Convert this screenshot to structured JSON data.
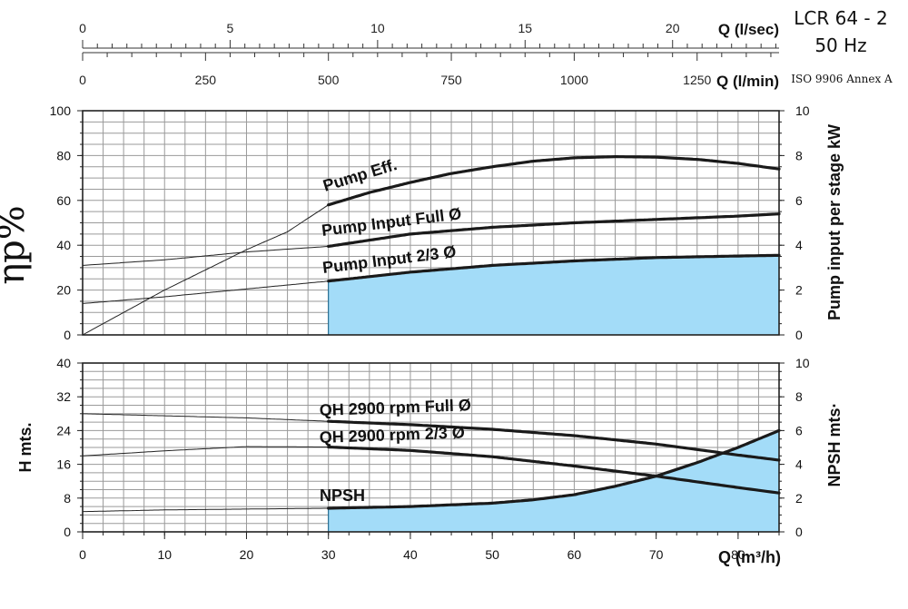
{
  "header": {
    "model": "LCR 64 - 2",
    "frequency": "50 Hz",
    "standard": "ISO 9906 Annex A"
  },
  "chart_data": [
    {
      "type": "line",
      "id": "flow-axes",
      "axes": [
        {
          "label": "Q (l/sec)",
          "ticks": [
            0,
            5,
            10,
            15,
            20
          ],
          "range": [
            0,
            23.61
          ],
          "minor_step": 0.5
        },
        {
          "label": "Q (l/min)",
          "ticks": [
            0,
            250,
            500,
            750,
            1000,
            1250
          ],
          "range": [
            0,
            1416.7
          ],
          "minor_step": 50
        }
      ]
    },
    {
      "type": "line",
      "id": "efficiency-power",
      "xlim": [
        0,
        85
      ],
      "y_left": {
        "label": "ηp%",
        "ticks": [
          0,
          20,
          40,
          60,
          80,
          100
        ],
        "lim": [
          0,
          100
        ]
      },
      "y_right": {
        "label": "Pump input per stage kW",
        "ticks": [
          0,
          2,
          4,
          6,
          8,
          10
        ],
        "lim": [
          0,
          10
        ]
      },
      "grid": true,
      "shaded_range": [
        30,
        85
      ],
      "series": [
        {
          "name": "Pump Eff.",
          "axis": "left",
          "x": [
            0,
            5,
            10,
            15,
            20,
            25,
            30,
            35,
            40,
            45,
            50,
            55,
            60,
            65,
            70,
            75,
            80,
            85
          ],
          "y": [
            0,
            10,
            20,
            29,
            38,
            46,
            58,
            63.5,
            68,
            72,
            75,
            77.5,
            79,
            79.5,
            79.3,
            78.3,
            76.5,
            74
          ]
        },
        {
          "name": "Pump Input Full Ø",
          "axis": "right",
          "x": [
            0,
            10,
            20,
            30,
            40,
            50,
            60,
            70,
            80,
            85
          ],
          "y": [
            3.1,
            3.35,
            3.7,
            3.95,
            4.5,
            4.8,
            5.0,
            5.15,
            5.3,
            5.4
          ]
        },
        {
          "name": "Pump Input 2/3 Ø",
          "axis": "right",
          "fill": true,
          "x": [
            0,
            10,
            20,
            30,
            40,
            50,
            60,
            70,
            80,
            85
          ],
          "y": [
            1.4,
            1.7,
            2.05,
            2.4,
            2.8,
            3.1,
            3.3,
            3.45,
            3.52,
            3.55
          ]
        }
      ]
    },
    {
      "type": "line",
      "id": "head-npsh",
      "xlabel": "Q (m³/h)",
      "x_ticks": [
        0,
        10,
        20,
        30,
        40,
        50,
        60,
        70,
        80
      ],
      "xlim": [
        0,
        85
      ],
      "y_left": {
        "label": "H mts.",
        "ticks": [
          0,
          8,
          16,
          24,
          32,
          40
        ],
        "lim": [
          0,
          40
        ]
      },
      "y_right": {
        "label": "NPSH mts·",
        "ticks": [
          0,
          2,
          4,
          6,
          8,
          10
        ],
        "lim": [
          0,
          10
        ]
      },
      "grid": true,
      "shaded_range": [
        30,
        85
      ],
      "series": [
        {
          "name": "QH 2900 rpm Full Ø",
          "axis": "left",
          "x": [
            0,
            10,
            20,
            30,
            40,
            50,
            60,
            70,
            80,
            85
          ],
          "y": [
            28,
            27.5,
            27,
            26.2,
            25.4,
            24.3,
            22.8,
            20.8,
            18.2,
            17
          ]
        },
        {
          "name": "QH 2900 rpm 2/3 Ø",
          "axis": "left",
          "x": [
            0,
            10,
            20,
            30,
            40,
            50,
            60,
            70,
            80,
            85
          ],
          "y": [
            18,
            19.2,
            20.2,
            20.1,
            19.3,
            17.8,
            15.6,
            13.2,
            10.5,
            9.2
          ]
        },
        {
          "name": "NPSH",
          "axis": "right",
          "fill": true,
          "x": [
            0,
            10,
            20,
            30,
            40,
            50,
            55,
            60,
            65,
            70,
            75,
            80,
            85
          ],
          "y": [
            1.2,
            1.3,
            1.35,
            1.4,
            1.5,
            1.7,
            1.9,
            2.2,
            2.7,
            3.3,
            4.1,
            5.0,
            6.0
          ]
        }
      ]
    }
  ]
}
